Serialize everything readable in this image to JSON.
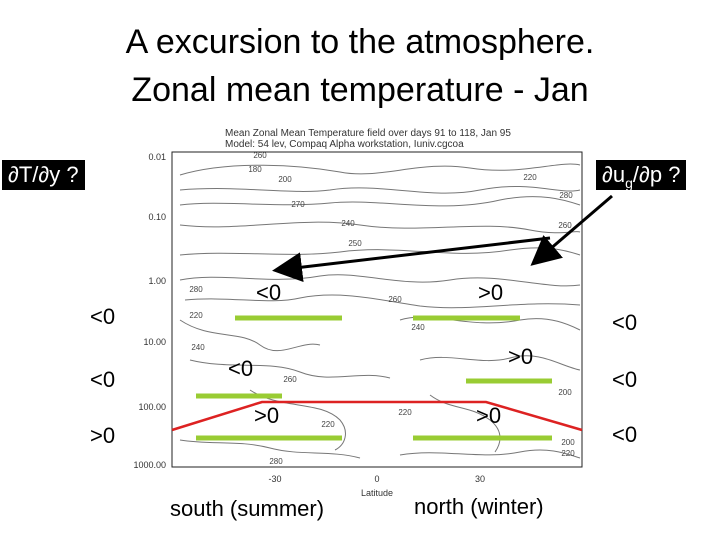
{
  "title_line1": "A excursion to the atmosphere.",
  "title_line2": "Zonal mean temperature - Jan",
  "figure": {
    "header_line1": "Mean Zonal Mean Temperature field over days 91 to 118, Jan 95",
    "header_line2": "Model: 54 lev, Compaq Alpha workstation, Iuniv.cgcoa"
  },
  "chart_data": {
    "type": "contour",
    "y_axis_ticks": [
      "0.01",
      "0.10",
      "1.00",
      "10.00",
      "100.00",
      "1000.00"
    ],
    "y_scale": "log",
    "y_inverted": true,
    "x_axis_ticks": [
      "-30",
      "0",
      "30"
    ],
    "xlabel": "Latitude",
    "contour_labels": [
      "180",
      "200",
      "220",
      "260",
      "270",
      "240",
      "280",
      "250",
      "260",
      "280",
      "260",
      "240",
      "220",
      "240",
      "260",
      "200",
      "220",
      "220",
      "200",
      "220",
      "280"
    ]
  },
  "annotations": {
    "dT_dy": "∂T/∂y ?",
    "dug_dp_main": "∂u",
    "dug_dp_sub": "g",
    "dug_dp_rest": "/∂p ?",
    "left_1": "<0",
    "left_2": "<0",
    "left_3": ">0",
    "right_1": "<0",
    "right_2": "<0",
    "right_3": "<0",
    "inner_top_left": "<0",
    "inner_top_right": ">0",
    "inner_mid_left": "<0",
    "inner_mid_right": ">0",
    "inner_low_left": ">0",
    "inner_low_right": ">0",
    "south": "south (summer)",
    "north": "north (winter)"
  },
  "colors": {
    "marker_green": "#99cc33",
    "marker_red": "#dd2222",
    "arrow": "#000000"
  }
}
